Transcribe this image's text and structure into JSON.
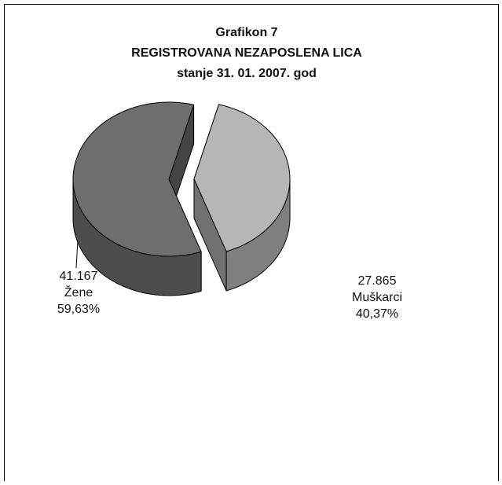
{
  "chart_data": {
    "type": "pie",
    "title": [
      "Grafikon 7",
      "REGISTROVANA NEZAPOSLENA LICA",
      "stanje 31. 01. 2007. god"
    ],
    "categories": [
      "Žene",
      "Muškarci"
    ],
    "values": [
      41167,
      27865
    ],
    "value_labels": [
      "41.167",
      "27.865"
    ],
    "percent": [
      59.63,
      40.37
    ],
    "percent_labels": [
      "59,63%",
      "40,37%"
    ],
    "colors": [
      "#6e6e6e",
      "#b6b6b6"
    ]
  }
}
